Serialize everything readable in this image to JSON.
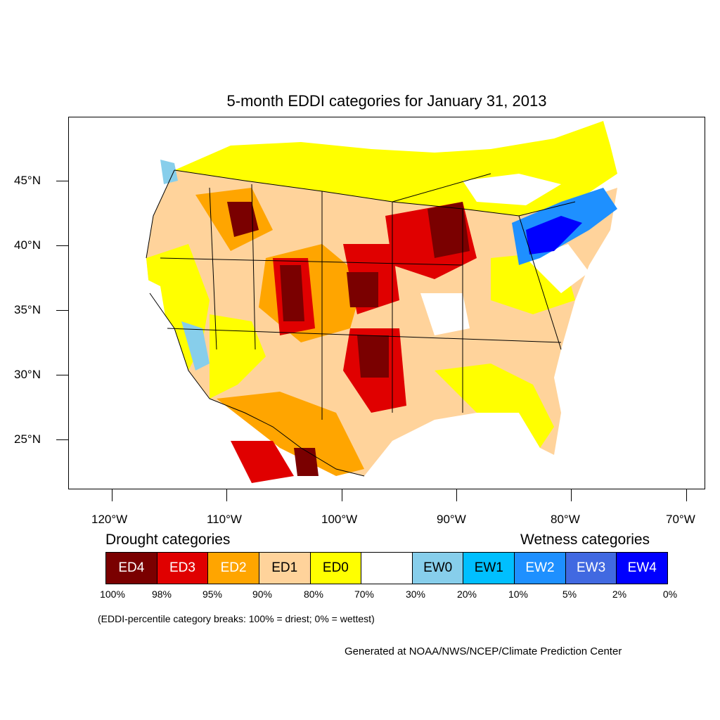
{
  "title": "5-month EDDI categories for January 31, 2013",
  "map": {
    "lat_labels": [
      "45°N",
      "40°N",
      "35°N",
      "30°N",
      "25°N"
    ],
    "lon_labels": [
      "120°W",
      "110°W",
      "100°W",
      "90°W",
      "80°W",
      "70°W"
    ]
  },
  "legend": {
    "drought_heading": "Drought categories",
    "wetness_heading": "Wetness categories",
    "categories": [
      {
        "label": "ED4",
        "color": "#7a0000",
        "text_color": "#ffffff"
      },
      {
        "label": "ED3",
        "color": "#e00000",
        "text_color": "#ffffff"
      },
      {
        "label": "ED2",
        "color": "#ffa500",
        "text_color": "#ffffff"
      },
      {
        "label": "ED1",
        "color": "#ffd39b",
        "text_color": "#000000"
      },
      {
        "label": "ED0",
        "color": "#ffff00",
        "text_color": "#000000"
      },
      {
        "label": "",
        "color": "#ffffff",
        "text_color": "#000000"
      },
      {
        "label": "EW0",
        "color": "#87ceeb",
        "text_color": "#000000"
      },
      {
        "label": "EW1",
        "color": "#00bfff",
        "text_color": "#000000"
      },
      {
        "label": "EW2",
        "color": "#1e90ff",
        "text_color": "#ffffff"
      },
      {
        "label": "EW3",
        "color": "#4169e1",
        "text_color": "#ffffff"
      },
      {
        "label": "EW4",
        "color": "#0000ff",
        "text_color": "#ffffff"
      }
    ],
    "breaks": [
      "100%",
      "98%",
      "95%",
      "90%",
      "80%",
      "70%",
      "30%",
      "20%",
      "10%",
      "5%",
      "2%",
      "0%"
    ]
  },
  "note": "(EDDI-percentile category breaks: 100% = driest; 0% = wettest)",
  "credit": "Generated at NOAA/NWS/NCEP/Climate Prediction Center"
}
